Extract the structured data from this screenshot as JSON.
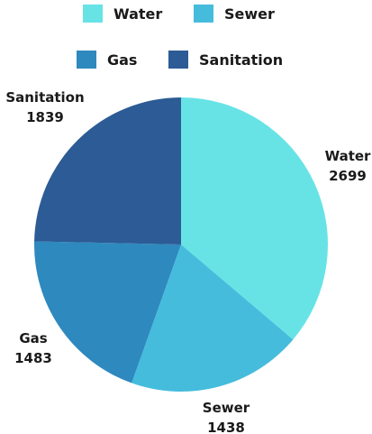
{
  "chart_data": {
    "type": "pie",
    "title": "",
    "legend_placement": "top",
    "start_angle_deg": 0,
    "direction": "clockwise",
    "slices": [
      {
        "label": "Water",
        "value": 2699,
        "color": "#67e3e6"
      },
      {
        "label": "Sewer",
        "value": 1438,
        "color": "#45bcdc"
      },
      {
        "label": "Gas",
        "value": 1483,
        "color": "#2e89be"
      },
      {
        "label": "Sanitation",
        "value": 1839,
        "color": "#2c5b95"
      }
    ]
  }
}
